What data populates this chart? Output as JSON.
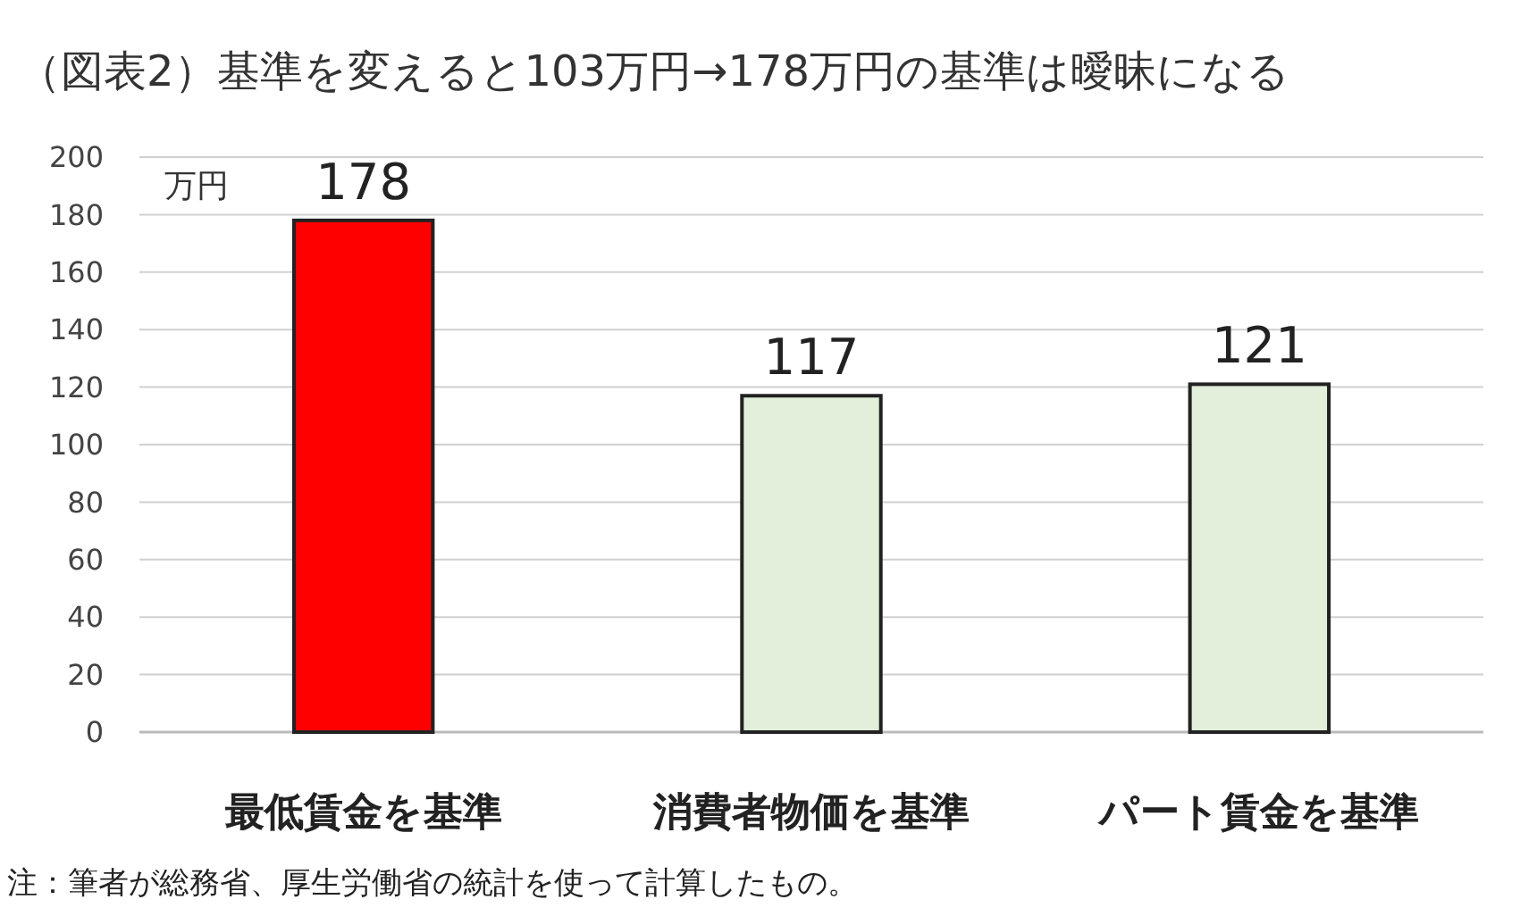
{
  "chart_data": {
    "type": "bar",
    "title": "（図表2）基準を変えると103万円→178万円の基準は曖昧になる",
    "ylabel": "万円",
    "categories": [
      "最低賃金を基準",
      "消費者物価を基準",
      "パート賃金を基準"
    ],
    "values": [
      178,
      117,
      121
    ],
    "colors": [
      "#ff0000",
      "#e2efda",
      "#e2efda"
    ],
    "ylim": [
      0,
      200
    ],
    "yticks": [
      0,
      20,
      40,
      60,
      80,
      100,
      120,
      140,
      160,
      180,
      200
    ],
    "grid": "y",
    "data_labels": true,
    "annotations": [
      "注：筆者が総務省、厚生労働省の統計を使って計算したもの。"
    ]
  }
}
